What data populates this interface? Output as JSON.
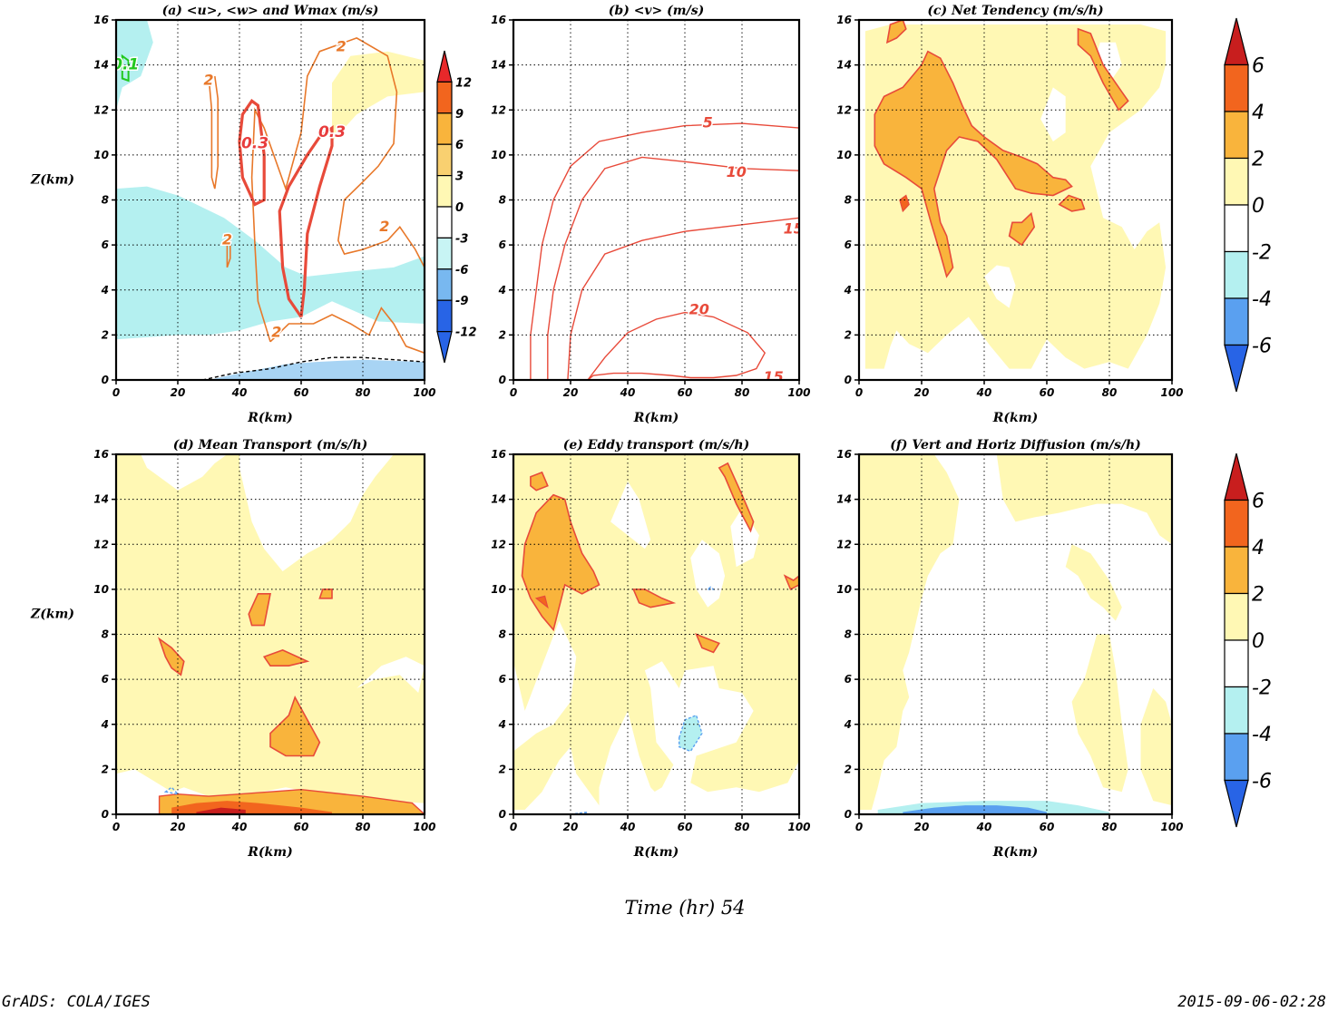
{
  "figure": {
    "time_label": "Time (hr) 54",
    "footer_left": "GrADS: COLA/IGES",
    "footer_right": "2015-09-06-02:28"
  },
  "colorbars": {
    "small_labels": [
      "12",
      "9",
      "6",
      "3",
      "0",
      "-3",
      "-6",
      "-9",
      "-12"
    ],
    "large_labels": [
      "6",
      "4",
      "2",
      "0",
      "-2",
      "-4",
      "-6"
    ],
    "colors": [
      "#c81e1e",
      "#f2651e",
      "#f9b43c",
      "#fff8b4",
      "#ffffff",
      "#b4f0f0",
      "#5aa0f0",
      "#2864e6"
    ]
  },
  "chart_data": [
    {
      "id": "a",
      "type": "contour",
      "title": "(a) <u>, <w> and Wmax (m/s)",
      "xlabel": "R(km)",
      "ylabel": "Z(km)",
      "xlim": [
        0,
        100
      ],
      "ylim": [
        0,
        16
      ],
      "xticks": [
        "0",
        "20",
        "40",
        "60",
        "80",
        "100"
      ],
      "yticks": [
        "0",
        "2",
        "4",
        "6",
        "8",
        "10",
        "12",
        "14",
        "16"
      ],
      "fill_levels": [
        -12,
        -9,
        -6,
        -3,
        0,
        3,
        6,
        9,
        12
      ],
      "contour_labels": [
        {
          "text": "0.1",
          "x": 3,
          "y": 14.0,
          "color": "#22c81e"
        },
        {
          "text": "2",
          "x": 30,
          "y": 13.3,
          "color": "#e8782a"
        },
        {
          "text": "2",
          "x": 73,
          "y": 14.8,
          "color": "#e8782a"
        },
        {
          "text": "2",
          "x": 36,
          "y": 6.2,
          "color": "#e8782a"
        },
        {
          "text": "2",
          "x": 87,
          "y": 6.8,
          "color": "#e8782a"
        },
        {
          "text": "2",
          "x": 52,
          "y": 2.1,
          "color": "#e8782a"
        },
        {
          "text": "0.3",
          "x": 45,
          "y": 10.5,
          "color": "#e83c3c"
        },
        {
          "text": "0.3",
          "x": 70,
          "y": 11.0,
          "color": "#e83c3c"
        }
      ]
    },
    {
      "id": "b",
      "type": "contour",
      "title": "(b) <v> (m/s)",
      "xlabel": "R(km)",
      "ylabel": "",
      "xlim": [
        0,
        100
      ],
      "ylim": [
        0,
        16
      ],
      "xticks": [
        "0",
        "20",
        "40",
        "60",
        "80",
        "100"
      ],
      "yticks": [
        "0",
        "2",
        "4",
        "6",
        "8",
        "10",
        "12",
        "14",
        "16"
      ],
      "contours": [
        {
          "level": "5",
          "points": [
            [
              6,
              0
            ],
            [
              6,
              2
            ],
            [
              8,
              4
            ],
            [
              10,
              6
            ],
            [
              14,
              8
            ],
            [
              20,
              9.5
            ],
            [
              30,
              10.6
            ],
            [
              45,
              11.0
            ],
            [
              60,
              11.3
            ],
            [
              80,
              11.4
            ],
            [
              100,
              11.2
            ]
          ]
        },
        {
          "level": "10",
          "points": [
            [
              12,
              0
            ],
            [
              12,
              2
            ],
            [
              14,
              4
            ],
            [
              18,
              6
            ],
            [
              24,
              8
            ],
            [
              32,
              9.4
            ],
            [
              45,
              9.9
            ],
            [
              60,
              9.7
            ],
            [
              80,
              9.4
            ],
            [
              100,
              9.3
            ]
          ]
        },
        {
          "level": "15",
          "points": [
            [
              19,
              0
            ],
            [
              20,
              2
            ],
            [
              24,
              4
            ],
            [
              32,
              5.6
            ],
            [
              45,
              6.2
            ],
            [
              60,
              6.6
            ],
            [
              80,
              6.9
            ],
            [
              100,
              7.2
            ]
          ]
        },
        {
          "level": "20",
          "points": [
            [
              26,
              0
            ],
            [
              32,
              1
            ],
            [
              40,
              2.1
            ],
            [
              50,
              2.7
            ],
            [
              60,
              3.0
            ],
            [
              70,
              2.8
            ],
            [
              82,
              2.1
            ],
            [
              88,
              1.2
            ],
            [
              85,
              0.5
            ],
            [
              78,
              0.2
            ],
            [
              70,
              0.1
            ],
            [
              62,
              0.1
            ],
            [
              55,
              0.2
            ],
            [
              45,
              0.3
            ],
            [
              35,
              0.3
            ],
            [
              28,
              0.2
            ],
            [
              26,
              0
            ]
          ]
        }
      ],
      "contour_labels": [
        {
          "text": "5",
          "x": 68,
          "y": 11.4
        },
        {
          "text": "10",
          "x": 78,
          "y": 9.2
        },
        {
          "text": "15",
          "x": 98,
          "y": 6.7
        },
        {
          "text": "20",
          "x": 65,
          "y": 3.1
        },
        {
          "text": "15",
          "x": 91,
          "y": 0.1
        }
      ]
    },
    {
      "id": "c",
      "type": "contour",
      "title": "(c) Net Tendency (m/s/h)",
      "xlabel": "R(km)",
      "ylabel": "",
      "xlim": [
        0,
        100
      ],
      "ylim": [
        0,
        16
      ],
      "xticks": [
        "0",
        "20",
        "40",
        "60",
        "80",
        "100"
      ],
      "yticks": [
        "0",
        "2",
        "4",
        "6",
        "8",
        "10",
        "12",
        "14",
        "16"
      ],
      "fill_levels": [
        -6,
        -4,
        -2,
        0,
        2,
        4,
        6
      ]
    },
    {
      "id": "d",
      "type": "contour",
      "title": "(d) Mean Transport (m/s/h)",
      "xlabel": "R(km)",
      "ylabel": "Z(km)",
      "xlim": [
        0,
        100
      ],
      "ylim": [
        0,
        16
      ],
      "xticks": [
        "0",
        "20",
        "40",
        "60",
        "80",
        "100"
      ],
      "yticks": [
        "0",
        "2",
        "4",
        "6",
        "8",
        "10",
        "12",
        "14",
        "16"
      ],
      "fill_levels": [
        -6,
        -4,
        -2,
        0,
        2,
        4,
        6
      ]
    },
    {
      "id": "e",
      "type": "contour",
      "title": "(e) Eddy transport (m/s/h)",
      "xlabel": "R(km)",
      "ylabel": "",
      "xlim": [
        0,
        100
      ],
      "ylim": [
        0,
        16
      ],
      "xticks": [
        "0",
        "20",
        "40",
        "60",
        "80",
        "100"
      ],
      "yticks": [
        "0",
        "2",
        "4",
        "6",
        "8",
        "10",
        "12",
        "14",
        "16"
      ],
      "fill_levels": [
        -6,
        -4,
        -2,
        0,
        2,
        4,
        6
      ]
    },
    {
      "id": "f",
      "type": "contour",
      "title": "(f) Vert and Horiz Diffusion (m/s/h)",
      "xlabel": "R(km)",
      "ylabel": "",
      "xlim": [
        0,
        100
      ],
      "ylim": [
        0,
        16
      ],
      "xticks": [
        "0",
        "20",
        "40",
        "60",
        "80",
        "100"
      ],
      "yticks": [
        "0",
        "2",
        "4",
        "6",
        "8",
        "10",
        "12",
        "14",
        "16"
      ],
      "fill_levels": [
        -6,
        -4,
        -2,
        0,
        2,
        4,
        6
      ]
    }
  ]
}
